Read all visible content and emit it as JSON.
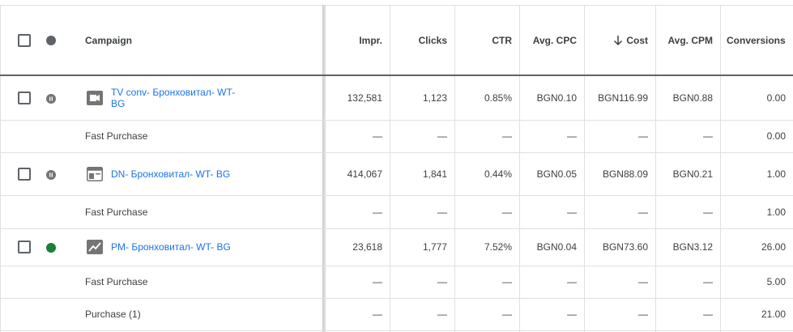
{
  "header": {
    "columns": [
      "Campaign",
      "Impr.",
      "Clicks",
      "CTR",
      "Avg. CPC",
      "Cost",
      "Avg. CPM",
      "Conversions"
    ]
  },
  "rows": [
    {
      "campaign": "TV conv- Бронховитал- WT- BG",
      "cells": [
        "132,581",
        "1,123",
        "0.85%",
        "BGN0.10",
        "BGN116.99",
        "BGN0.88",
        "0.00"
      ]
    },
    {
      "campaign": "Fast Purchase",
      "cells": [
        "—",
        "—",
        "—",
        "—",
        "—",
        "—",
        "0.00"
      ]
    },
    {
      "campaign": "DN- Бронховитал- WT- BG",
      "cells": [
        "414,067",
        "1,841",
        "0.44%",
        "BGN0.05",
        "BGN88.09",
        "BGN0.21",
        "1.00"
      ]
    },
    {
      "campaign": "Fast Purchase",
      "cells": [
        "—",
        "—",
        "—",
        "—",
        "—",
        "—",
        "1.00"
      ]
    },
    {
      "campaign": "PM- Бронховитал- WT- BG",
      "cells": [
        "23,618",
        "1,777",
        "7.52%",
        "BGN0.04",
        "BGN73.60",
        "BGN3.12",
        "26.00"
      ]
    },
    {
      "campaign": "Fast Purchase",
      "cells": [
        "—",
        "—",
        "—",
        "—",
        "—",
        "—",
        "5.00"
      ]
    },
    {
      "campaign": "Purchase (1)",
      "cells": [
        "—",
        "—",
        "—",
        "—",
        "—",
        "—",
        "21.00"
      ]
    }
  ]
}
